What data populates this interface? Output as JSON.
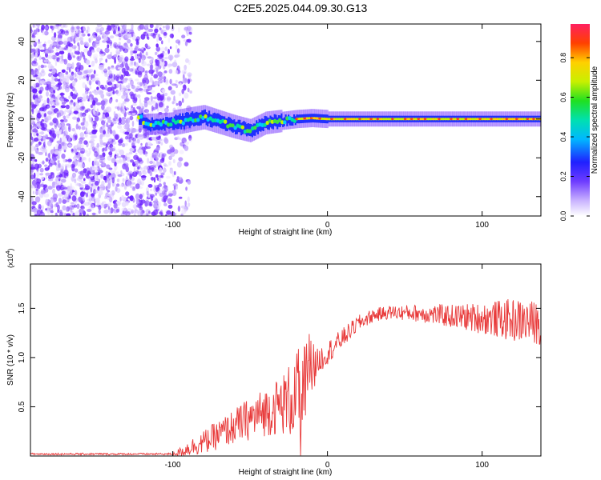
{
  "title": "C2E5.2025.044.09.30.G13",
  "chart_data": [
    {
      "type": "heatmap",
      "title": "C2E5.2025.044.09.30.G13",
      "xlabel": "Height of straight line (km)",
      "ylabel": "Frequency (Hz)",
      "xlim": [
        -192,
        138
      ],
      "ylim": [
        -50,
        49
      ],
      "xticks": [
        -100,
        0,
        100
      ],
      "yticks": [
        -40,
        -20,
        0,
        20,
        40
      ],
      "colorbar": {
        "label": "Normalized spectral amplitude",
        "range": [
          0,
          0.97
        ],
        "ticks": [
          "0.0",
          "0.2",
          "0.4",
          "0.6",
          "0.8"
        ]
      },
      "description_points": {
        "noise_region_x": [
          -192,
          -100
        ],
        "signal_start_x": -122,
        "signal_center_freq": [
          [
            -120,
            -3
          ],
          [
            -100,
            -2
          ],
          [
            -80,
            1
          ],
          [
            -60,
            -4
          ],
          [
            -50,
            -6
          ],
          [
            -40,
            -2
          ],
          [
            -30,
            -1
          ],
          [
            -20,
            0
          ],
          [
            -10,
            0.5
          ],
          [
            0,
            0
          ],
          [
            20,
            0
          ],
          [
            60,
            0
          ],
          [
            100,
            0
          ],
          [
            138,
            0
          ]
        ]
      }
    },
    {
      "type": "line",
      "xlabel": "Height of straight line (km)",
      "ylabel": "SNR (10 * v/v)",
      "scale_label_base": "(x10",
      "scale_label_exp": "4",
      "scale_label_end": ")",
      "xlim": [
        -192,
        138
      ],
      "ylim": [
        0,
        1.95
      ],
      "xticks": [
        -100,
        0,
        100
      ],
      "yticks": [
        "0.5",
        "1.0",
        "1.5"
      ],
      "series": [
        {
          "name": "SNR",
          "color": "#e83a3a",
          "envelope": {
            "x": [
              -192,
              -100,
              -95,
              -90,
              -80,
              -70,
              -60,
              -50,
              -40,
              -30,
              -20,
              -15,
              -10,
              0,
              10,
              20,
              30,
              40,
              60,
              80,
              100,
              120,
              138
            ],
            "mean": [
              0.02,
              0.02,
              0.04,
              0.08,
              0.14,
              0.22,
              0.3,
              0.38,
              0.45,
              0.52,
              0.6,
              0.7,
              0.9,
              1.05,
              1.2,
              1.35,
              1.43,
              1.46,
              1.45,
              1.42,
              1.4,
              1.38,
              1.35
            ],
            "amp": [
              0.01,
              0.01,
              0.05,
              0.08,
              0.12,
              0.15,
              0.18,
              0.22,
              0.25,
              0.3,
              0.45,
              0.5,
              0.15,
              0.12,
              0.1,
              0.08,
              0.07,
              0.07,
              0.09,
              0.12,
              0.16,
              0.22,
              0.22
            ]
          }
        }
      ]
    }
  ]
}
